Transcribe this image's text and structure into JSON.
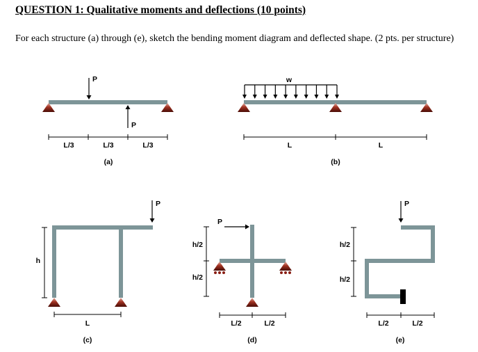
{
  "header": {
    "title": "QUESTION 1: Qualitative moments and deflections (10 points)",
    "instructions": "For each structure (a) through (e), sketch the bending moment diagram and deflected shape. (2 pts. per structure)"
  },
  "figures": {
    "a": {
      "caption": "(a)",
      "load_top": "P",
      "load_bottom": "P",
      "spans": [
        "L/3",
        "L/3",
        "L/3"
      ]
    },
    "b": {
      "caption": "(b)",
      "load": "w",
      "spans": [
        "L",
        "L"
      ]
    },
    "c": {
      "caption": "(c)",
      "load": "P",
      "height": "h",
      "span": "L"
    },
    "d": {
      "caption": "(d)",
      "load": "P",
      "heights": [
        "h/2",
        "h/2"
      ],
      "spans": [
        "L/2",
        "L/2"
      ]
    },
    "e": {
      "caption": "(e)",
      "load": "P",
      "heights": [
        "h/2",
        "h/2"
      ],
      "spans": [
        "L/2",
        "L/2"
      ]
    }
  },
  "colors": {
    "member": "#7d9598",
    "support": "#8a1e14",
    "text": "#000000"
  }
}
